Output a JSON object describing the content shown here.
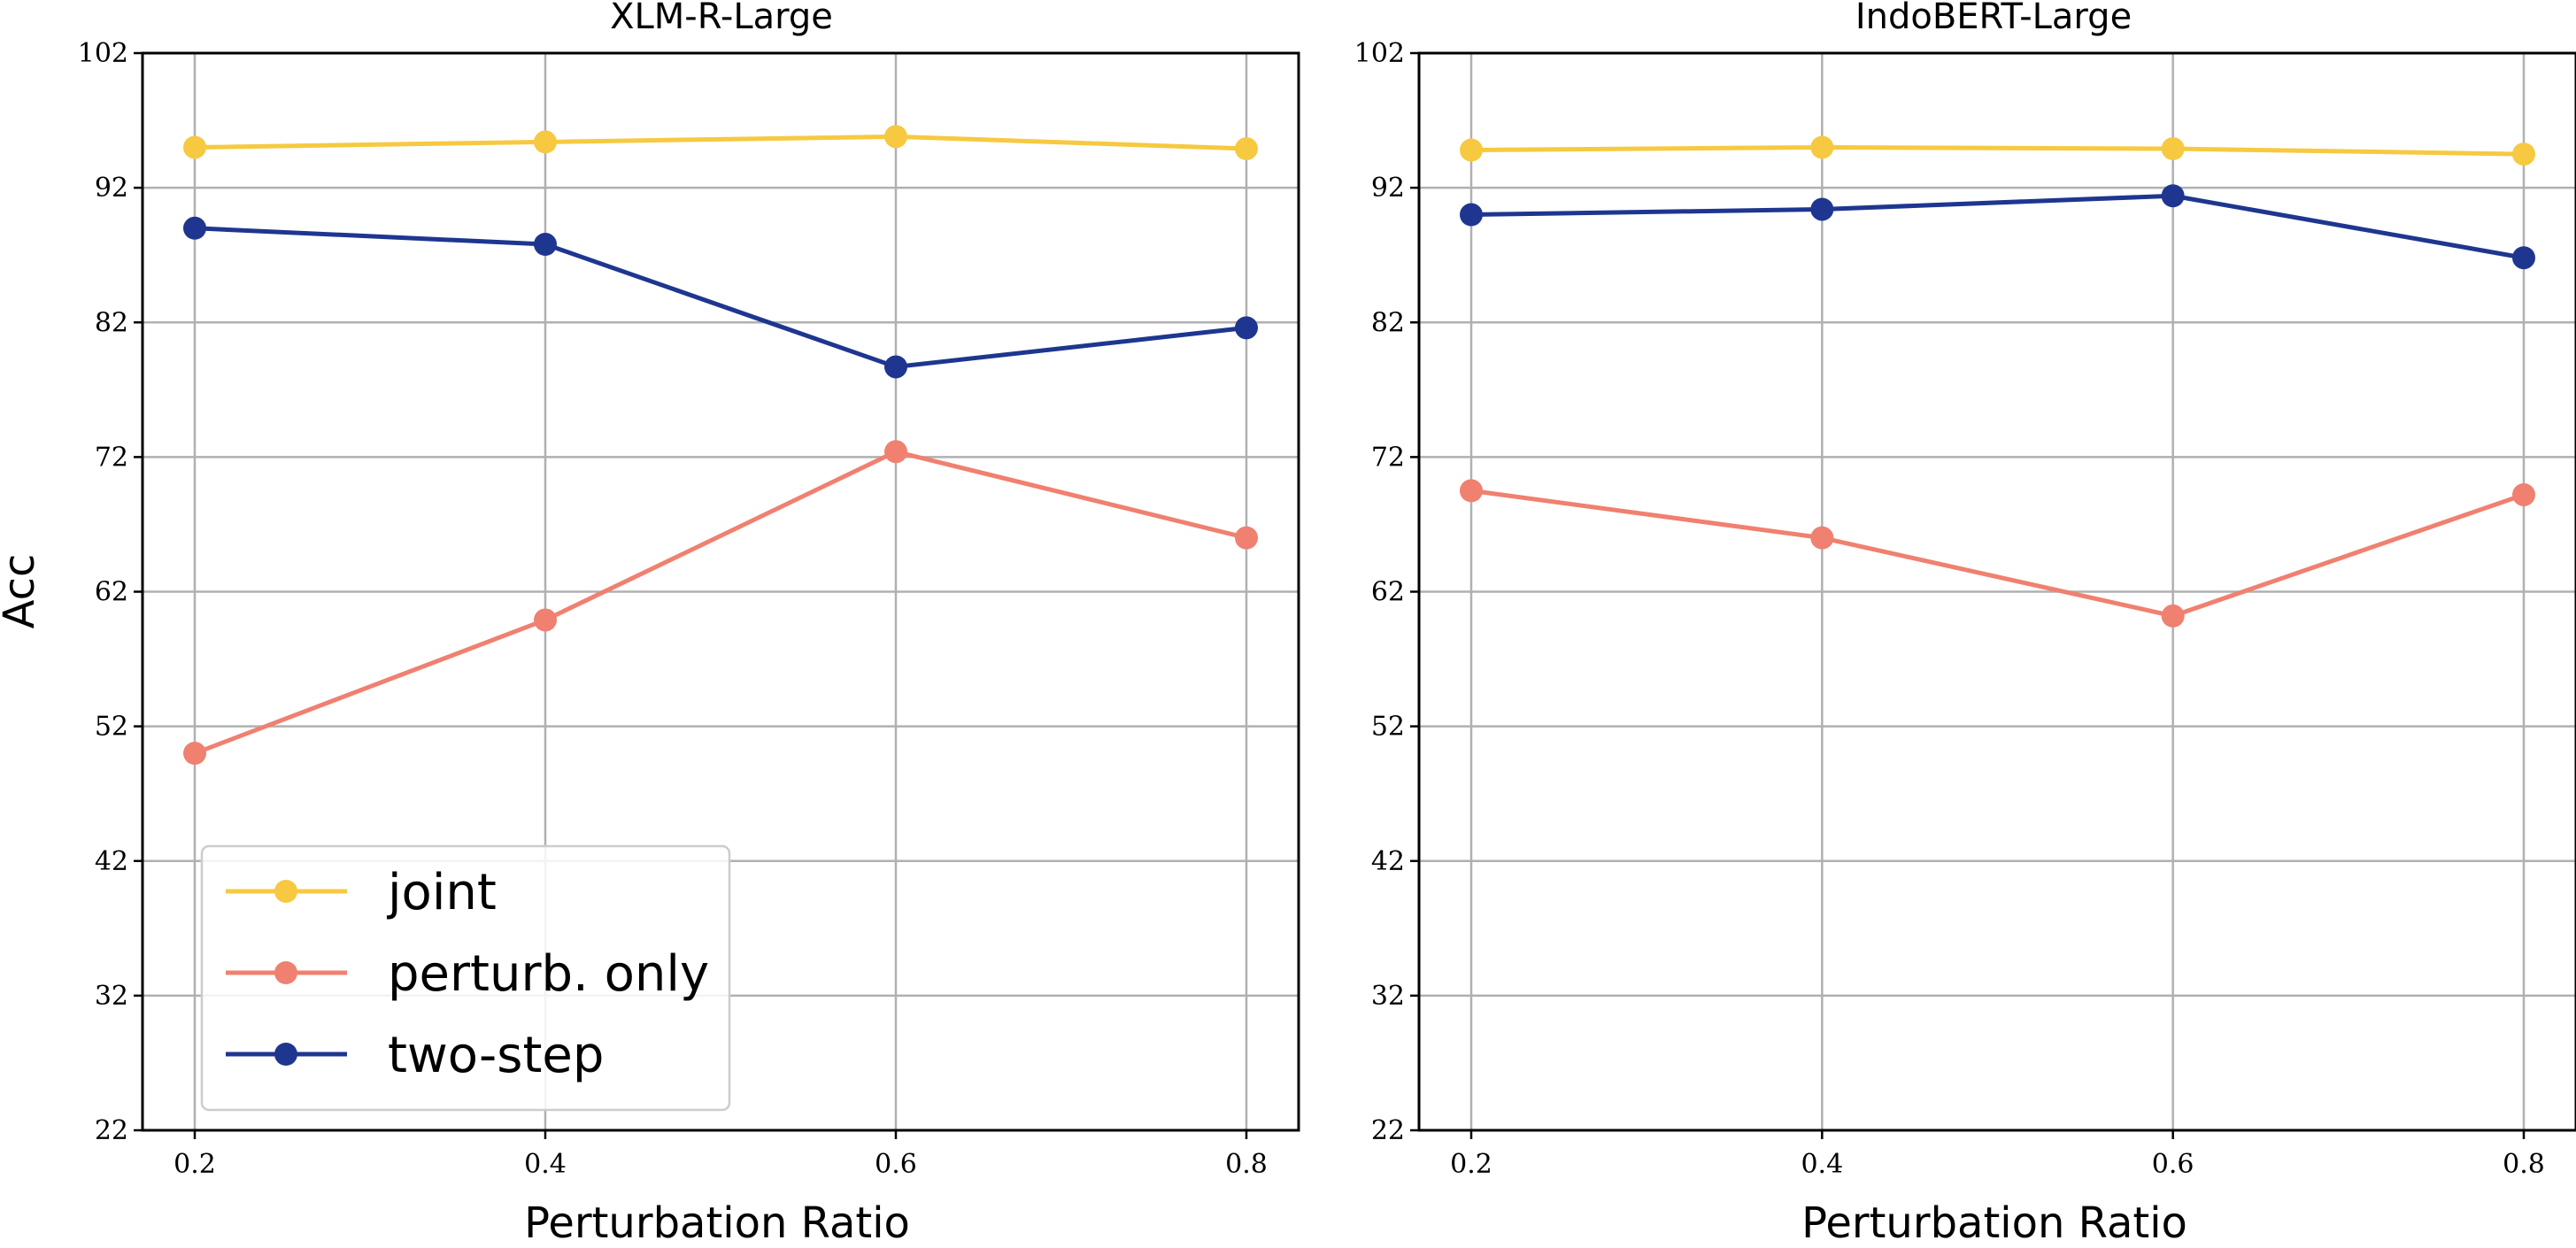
{
  "figure": {
    "ylabel": "Acc",
    "colors": {
      "joint": "#F6C940",
      "perturb": "#F08070",
      "twostep": "#1F3690",
      "grid": "#B0B0B0",
      "axis": "#000000"
    },
    "legend": {
      "placement": "lower-left of first panel",
      "entries": [
        {
          "label": "joint",
          "color_key": "joint"
        },
        {
          "label": "perturb. only",
          "color_key": "perturb"
        },
        {
          "label": "two-step",
          "color_key": "twostep"
        }
      ]
    }
  },
  "chart_data": [
    {
      "type": "line",
      "title": "XLM-R-Large",
      "xlabel": "Perturbation Ratio",
      "ylabel": "Acc",
      "x": [
        0.2,
        0.4,
        0.6,
        0.8
      ],
      "x_ticks": [
        "0.2",
        "0.4",
        "0.6",
        "0.8"
      ],
      "y_ticks": [
        "22",
        "32",
        "42",
        "52",
        "62",
        "72",
        "82",
        "92",
        "102"
      ],
      "ylim": [
        22,
        102
      ],
      "grid": true,
      "legend": true,
      "series": [
        {
          "name": "joint",
          "color_key": "joint",
          "values": [
            95.0,
            95.4,
            95.8,
            94.9
          ]
        },
        {
          "name": "perturb. only",
          "color_key": "perturb",
          "values": [
            50.0,
            59.9,
            72.4,
            66.0
          ]
        },
        {
          "name": "two-step",
          "color_key": "twostep",
          "values": [
            89.0,
            87.8,
            78.7,
            81.6
          ]
        }
      ]
    },
    {
      "type": "line",
      "title": "IndoBERT-Large",
      "xlabel": "Perturbation Ratio",
      "ylabel": "",
      "x": [
        0.2,
        0.4,
        0.6,
        0.8
      ],
      "x_ticks": [
        "0.2",
        "0.4",
        "0.6",
        "0.8"
      ],
      "y_ticks": [
        "22",
        "32",
        "42",
        "52",
        "62",
        "72",
        "82",
        "92",
        "102"
      ],
      "ylim": [
        22,
        102
      ],
      "grid": true,
      "legend": false,
      "series": [
        {
          "name": "joint",
          "color_key": "joint",
          "values": [
            94.8,
            95.0,
            94.9,
            94.5
          ]
        },
        {
          "name": "perturb. only",
          "color_key": "perturb",
          "values": [
            69.5,
            66.0,
            60.2,
            69.2
          ]
        },
        {
          "name": "two-step",
          "color_key": "twostep",
          "values": [
            90.0,
            90.4,
            91.4,
            86.8
          ]
        }
      ]
    }
  ]
}
